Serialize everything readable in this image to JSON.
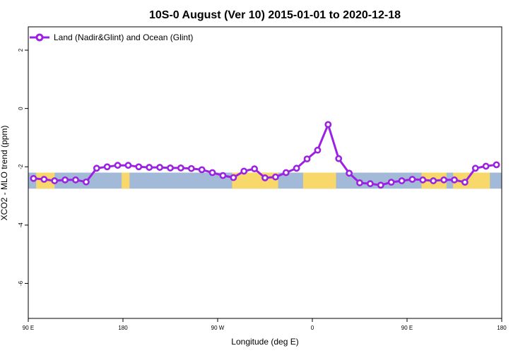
{
  "colors": {
    "series": "#9a22e0",
    "ocean_band": "#a3b9d8",
    "land_band": "#f9d86b",
    "marker_fill": "#ffffff"
  },
  "chart_data": {
    "type": "line",
    "title": "10S-0 August (Ver 10)   2015-01-01 to 2020-12-18",
    "xlabel": "Longitude (deg E)",
    "ylabel": "XCO2 - MLO trend (ppm)",
    "xlim": [
      90,
      450
    ],
    "ylim": [
      -7.2,
      2.8
    ],
    "x_ticks": [
      90,
      162,
      234,
      306,
      378,
      450
    ],
    "x_tick_labels": [
      "90 E",
      "180",
      "90 W",
      "0",
      "90 E",
      "180"
    ],
    "y_ticks": [
      2,
      0,
      -2,
      -4,
      -6
    ],
    "y_tick_labels": [
      "2",
      "0",
      "-2",
      "-4",
      "-6"
    ],
    "grid": false,
    "legend_position": "top-left",
    "band": {
      "y_range": [
        -2.75,
        -2.2
      ]
    },
    "land_segments": [
      [
        96,
        110
      ],
      [
        161,
        167
      ],
      [
        245,
        280
      ],
      [
        299,
        324
      ],
      [
        389,
        408
      ],
      [
        413,
        441
      ]
    ],
    "series": [
      {
        "name": "Land (Nadir&Glint) and Ocean (Glint)",
        "x": [
          94,
          102,
          110,
          118,
          126,
          134,
          142,
          150,
          158,
          166,
          174,
          182,
          190,
          198,
          206,
          214,
          222,
          230,
          238,
          246,
          254,
          262,
          270,
          278,
          286,
          294,
          302,
          310,
          318,
          326,
          334,
          342,
          350,
          358,
          366,
          374,
          382,
          390,
          398,
          406,
          414,
          422,
          430,
          438,
          446
        ],
        "values": [
          -2.4,
          -2.43,
          -2.48,
          -2.45,
          -2.45,
          -2.52,
          -2.05,
          -2.0,
          -1.95,
          -1.95,
          -2.0,
          -2.02,
          -2.02,
          -2.04,
          -2.04,
          -2.06,
          -2.1,
          -2.2,
          -2.3,
          -2.37,
          -2.15,
          -2.07,
          -2.38,
          -2.35,
          -2.2,
          -2.05,
          -1.73,
          -1.43,
          -0.55,
          -1.72,
          -2.22,
          -2.55,
          -2.58,
          -2.63,
          -2.53,
          -2.48,
          -2.43,
          -2.45,
          -2.48,
          -2.45,
          -2.45,
          -2.53,
          -2.05,
          -1.98,
          -1.93
        ]
      }
    ]
  }
}
